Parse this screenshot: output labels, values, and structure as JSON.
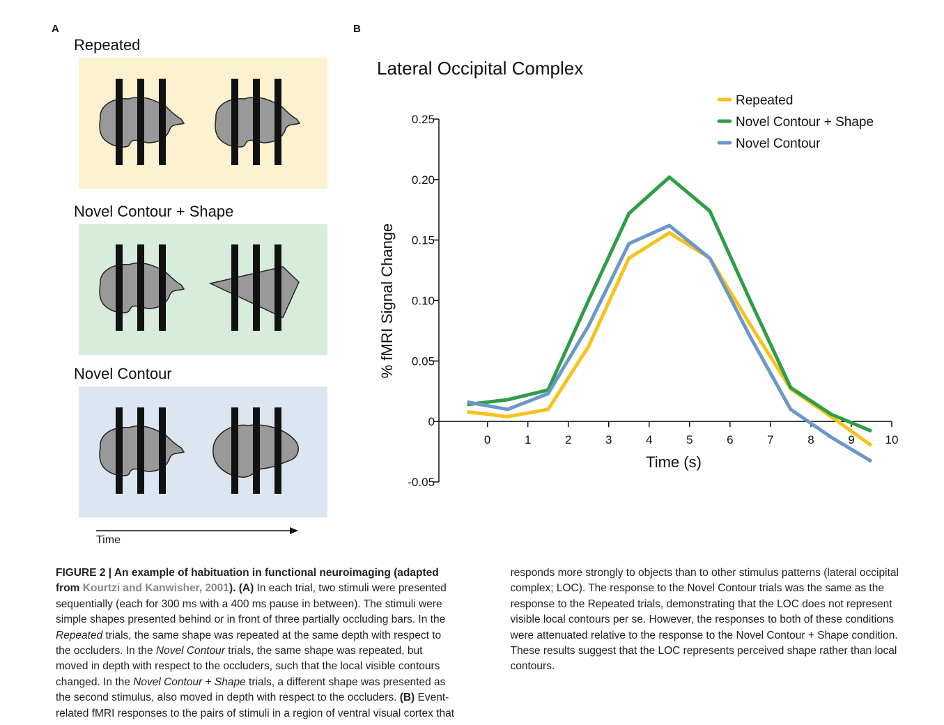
{
  "panel_a": {
    "label": "A",
    "conditions": [
      "Repeated",
      "Novel Contour + Shape",
      "Novel Contour"
    ],
    "time_label": "Time"
  },
  "panel_b": {
    "label": "B"
  },
  "chart_data": {
    "type": "line",
    "title": "Lateral Occipital Complex",
    "x_label": "Time (s)",
    "y_label": "% fMRI Signal Change",
    "x": [
      -0.5,
      0.5,
      1.5,
      2.5,
      3.5,
      4.5,
      5.5,
      6.5,
      7.5,
      8.5,
      9.5
    ],
    "series": [
      {
        "name": "Repeated",
        "color": "#f7c21a",
        "values": [
          0.008,
          0.004,
          0.01,
          0.062,
          0.135,
          0.156,
          0.135,
          0.08,
          0.027,
          0.004,
          -0.02
        ]
      },
      {
        "name": "Novel Contour + Shape",
        "color": "#2f9d45",
        "values": [
          0.014,
          0.018,
          0.026,
          0.1,
          0.172,
          0.202,
          0.174,
          0.1,
          0.028,
          0.006,
          -0.008
        ]
      },
      {
        "name": "Novel Contour",
        "color": "#6b98c8",
        "values": [
          0.016,
          0.01,
          0.023,
          0.079,
          0.147,
          0.162,
          0.135,
          0.07,
          0.01,
          -0.013,
          -0.033
        ]
      }
    ],
    "xlim": [
      -1.2,
      10
    ],
    "xticks": [
      0,
      1,
      2,
      3,
      4,
      5,
      6,
      7,
      8,
      9,
      10
    ],
    "ylim": [
      -0.05,
      0.25
    ],
    "yticks": [
      -0.05,
      0,
      0.05,
      {
        "value": 0.1,
        "label": "0.10"
      },
      0.15,
      {
        "value": 0.2,
        "label": "0.20"
      },
      0.25
    ],
    "legend": "top-right"
  },
  "caption": {
    "runs": [
      {
        "text": "FIGURE 2 | An example of habituation in functional neuroimaging (adapted from ",
        "style": "bold"
      },
      {
        "text": "Kourtzi and Kanwisher, 2001",
        "style": "bold-link"
      },
      {
        "text": "). (A)",
        "style": "bold"
      },
      {
        "text": " In each trial, two stimuli were presented sequentially (each for 300 ms with a 400 ms pause in between). The stimuli were simple shapes presented behind or in front of three partially occluding bars. In the ",
        "style": "normal"
      },
      {
        "text": "Repeated",
        "style": "italic"
      },
      {
        "text": " trials, the same shape was repeated at the same depth with respect to the occluders. In the ",
        "style": "normal"
      },
      {
        "text": "Novel Contour",
        "style": "italic"
      },
      {
        "text": " trials, the same shape was repeated, but moved in depth with respect to the occluders, such that the local visible contours changed. In the ",
        "style": "normal"
      },
      {
        "text": "Novel Contour + Shape",
        "style": "italic"
      },
      {
        "text": " trials, a different shape was presented as the second stimulus, also moved in depth with respect to the occluders. ",
        "style": "normal"
      },
      {
        "text": "(B)",
        "style": "bold"
      },
      {
        "text": " Event-related fMRI responses to the pairs of stimuli in a region of ventral visual cortex that responds more strongly to objects than to other stimulus patterns (lateral occipital complex; LOC). The response to the Novel Contour trials was the same as the response to the Repeated trials, demonstrating that the LOC does not represent visible local contours per se. However, the responses to both of these conditions were attenuated relative to the response to the Novel Contour + Shape condition. These results suggest that the LOC represents perceived shape rather than local contours.",
        "style": "normal"
      }
    ]
  }
}
